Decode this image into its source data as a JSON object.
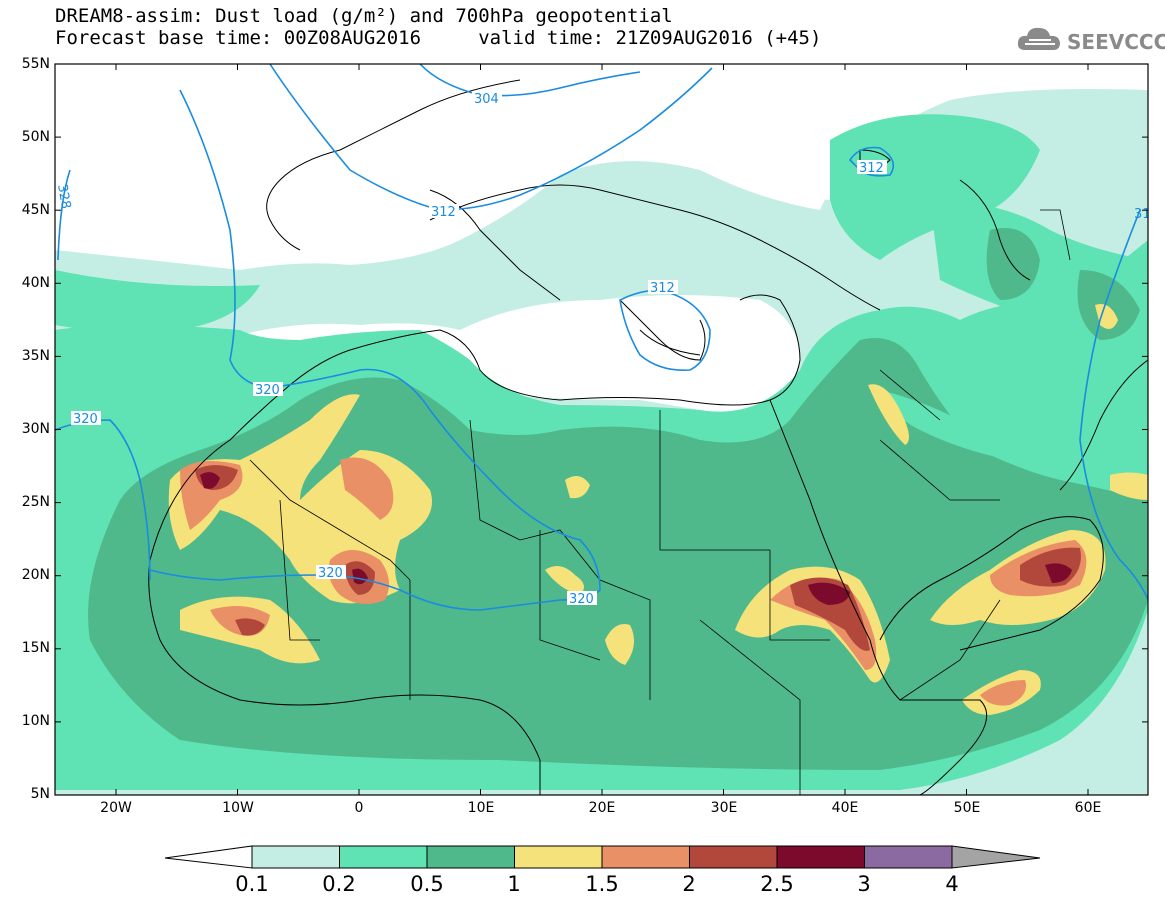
{
  "title": {
    "line1": "DREAM8-assim: Dust load (g/m²) and 700hPa geopotential",
    "line2": "Forecast base time: 00Z08AUG2016     valid time: 21Z09AUG2016 (+45)"
  },
  "logo": {
    "icon": "cloud-logo-icon",
    "text": "SEEVCCC"
  },
  "axes": {
    "lat_labels": [
      "55N",
      "50N",
      "45N",
      "40N",
      "35N",
      "30N",
      "25N",
      "20N",
      "15N",
      "10N",
      "5N"
    ],
    "lon_labels": [
      "20W",
      "10W",
      "0",
      "10E",
      "20E",
      "30E",
      "40E",
      "50E",
      "60E"
    ]
  },
  "contours": [
    {
      "label": "304"
    },
    {
      "label": "312"
    },
    {
      "label": "312"
    },
    {
      "label": "312"
    },
    {
      "label": "320"
    },
    {
      "label": "320"
    },
    {
      "label": "320"
    },
    {
      "label": "320"
    },
    {
      "label": "328"
    },
    {
      "label": "31"
    }
  ],
  "colorbar": {
    "ticks": [
      "0.1",
      "0.2",
      "0.5",
      "1",
      "1.5",
      "2",
      "2.5",
      "3",
      "4"
    ],
    "colors": [
      "#c4eee4",
      "#5fe2b4",
      "#4fb98c",
      "#f5e27a",
      "#ea9066",
      "#b2473c",
      "#7c0a2c",
      "#8b6aa2"
    ],
    "over_color": "#a4a4a4",
    "under_color": "#ffffff"
  },
  "field_colors": {
    "level1": "#c4eee4",
    "level2": "#5fe2b4",
    "level3": "#4fb98c",
    "level4": "#f5e27a",
    "level5": "#ea9066",
    "level6": "#b2473c",
    "level7": "#7c0a2c",
    "contour": "#1a8ce0"
  }
}
